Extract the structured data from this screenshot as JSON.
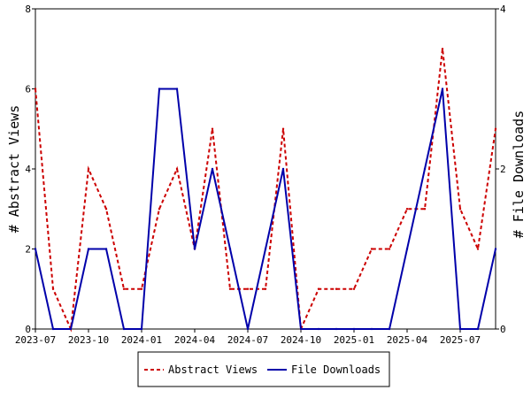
{
  "chart_data": {
    "type": "line",
    "title": "",
    "x": [
      "2023-07",
      "2023-08",
      "2023-09",
      "2023-10",
      "2023-11",
      "2023-12",
      "2024-01",
      "2024-02",
      "2024-03",
      "2024-04",
      "2024-05",
      "2024-06",
      "2024-07",
      "2024-08",
      "2024-09",
      "2024-10",
      "2024-11",
      "2024-12",
      "2025-01",
      "2025-02",
      "2025-03",
      "2025-04",
      "2025-05",
      "2025-06",
      "2025-07",
      "2025-08",
      "2025-09"
    ],
    "xtick_labels": [
      "2023-07",
      "2023-10",
      "2024-01",
      "2024-04",
      "2024-07",
      "2024-10",
      "2025-01",
      "2025-04",
      "2025-07"
    ],
    "ylabel_left": "# Abstract Views",
    "ylabel_right": "# File Downloads",
    "ylim_left": [
      0,
      8
    ],
    "ylim_right": [
      0,
      4
    ],
    "yticks_left": [
      "0",
      "2",
      "4",
      "6",
      "8"
    ],
    "yticks_right": [
      "0",
      "2",
      "4"
    ],
    "grid": false,
    "legend_placement": "bottom",
    "series": [
      {
        "name": "Abstract Views",
        "axis": "left",
        "color": "#cc0000",
        "style": "dashed",
        "values": [
          6,
          1,
          0,
          4,
          3,
          1,
          1,
          3,
          4,
          2,
          5,
          1,
          1,
          1,
          5,
          0,
          1,
          1,
          1,
          2,
          2,
          3,
          3,
          7,
          3,
          2,
          5
        ]
      },
      {
        "name": "File Downloads",
        "axis": "right",
        "color": "#0000aa",
        "style": "solid",
        "values": [
          1,
          0,
          0,
          1,
          1,
          0,
          0,
          3,
          3,
          1,
          2,
          1,
          0,
          1,
          2,
          0,
          0,
          0,
          0,
          0,
          0,
          1,
          2,
          3,
          0,
          0,
          1
        ]
      }
    ]
  }
}
